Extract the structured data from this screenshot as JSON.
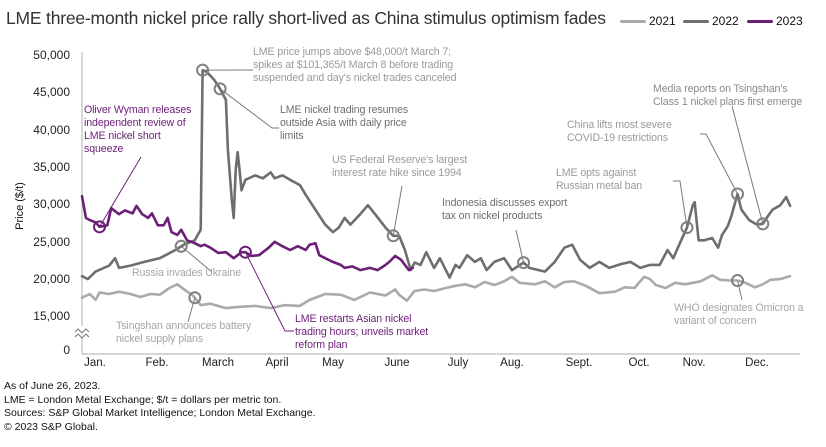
{
  "title": "LME three-month nickel price rally short-lived as China stimulus optimism fades",
  "chart_data": {
    "type": "line",
    "title": "LME three-month nickel price rally short-lived as China stimulus optimism fades",
    "xlabel": "",
    "ylabel": "Price ($/t)",
    "ylim": [
      15000,
      50000
    ],
    "y_ticks": [
      "50,000",
      "45,000",
      "40,000",
      "35,000",
      "30,000",
      "25,000",
      "20,000",
      "15,000",
      "0"
    ],
    "y_axis_break": "between 0 and 15,000",
    "categories": [
      "Jan.",
      "Feb.",
      "March",
      "April",
      "May",
      "June",
      "July",
      "Aug.",
      "Sept.",
      "Oct.",
      "Nov.",
      "Dec."
    ],
    "grid": false,
    "legend_position": "top-right",
    "series": [
      {
        "name": "2021",
        "color": "#aaaaaa",
        "points": [
          [
            "01-01",
            17600
          ],
          [
            "01-05",
            18100
          ],
          [
            "01-08",
            17300
          ],
          [
            "01-10",
            18300
          ],
          [
            "01-15",
            18100
          ],
          [
            "01-20",
            18400
          ],
          [
            "01-26",
            18100
          ],
          [
            "01-31",
            17700
          ],
          [
            "02-05",
            18100
          ],
          [
            "02-10",
            18000
          ],
          [
            "02-15",
            18900
          ],
          [
            "02-19",
            19400
          ],
          [
            "02-23",
            18600
          ],
          [
            "02-27",
            17900
          ],
          [
            "02-28",
            17600
          ],
          [
            "03-03",
            16600
          ],
          [
            "03-08",
            16800
          ],
          [
            "03-16",
            16200
          ],
          [
            "03-24",
            16400
          ],
          [
            "03-31",
            16500
          ],
          [
            "04-08",
            16200
          ],
          [
            "04-15",
            16600
          ],
          [
            "04-23",
            16500
          ],
          [
            "04-28",
            17300
          ],
          [
            "05-06",
            18100
          ],
          [
            "05-14",
            18000
          ],
          [
            "05-21",
            17300
          ],
          [
            "05-29",
            18300
          ],
          [
            "06-06",
            17900
          ],
          [
            "06-11",
            18700
          ],
          [
            "06-13",
            18000
          ],
          [
            "06-17",
            17200
          ],
          [
            "06-21",
            18500
          ],
          [
            "06-26",
            18700
          ],
          [
            "07-01",
            18500
          ],
          [
            "07-07",
            18900
          ],
          [
            "07-12",
            19200
          ],
          [
            "07-17",
            19400
          ],
          [
            "07-22",
            19000
          ],
          [
            "07-27",
            19700
          ],
          [
            "08-01",
            19300
          ],
          [
            "08-06",
            19800
          ],
          [
            "08-10",
            20400
          ],
          [
            "08-14",
            19600
          ],
          [
            "08-22",
            19400
          ],
          [
            "08-27",
            19800
          ],
          [
            "09-01",
            19000
          ],
          [
            "09-06",
            19700
          ],
          [
            "09-11",
            19800
          ],
          [
            "09-17",
            19200
          ],
          [
            "09-24",
            18200
          ],
          [
            "10-02",
            18400
          ],
          [
            "10-07",
            19000
          ],
          [
            "10-12",
            18900
          ],
          [
            "10-17",
            20400
          ],
          [
            "10-20",
            20100
          ],
          [
            "10-23",
            19300
          ],
          [
            "10-28",
            18900
          ],
          [
            "11-02",
            19600
          ],
          [
            "11-07",
            19400
          ],
          [
            "11-15",
            19800
          ],
          [
            "11-21",
            20600
          ],
          [
            "11-25",
            20000
          ],
          [
            "11-30",
            19900
          ],
          [
            "12-04",
            19900
          ],
          [
            "12-08",
            19600
          ],
          [
            "12-13",
            19000
          ],
          [
            "12-17",
            19400
          ],
          [
            "12-21",
            20000
          ],
          [
            "12-26",
            20100
          ],
          [
            "12-31",
            20500
          ]
        ]
      },
      {
        "name": "2022",
        "color": "#6e6e6e",
        "points": [
          [
            "01-01",
            20500
          ],
          [
            "01-04",
            20100
          ],
          [
            "01-08",
            21100
          ],
          [
            "01-15",
            21900
          ],
          [
            "01-18",
            22900
          ],
          [
            "01-20",
            21600
          ],
          [
            "01-26",
            21900
          ],
          [
            "02-02",
            22400
          ],
          [
            "02-10",
            22900
          ],
          [
            "02-18",
            24000
          ],
          [
            "02-23",
            24800
          ],
          [
            "02-28",
            25300
          ],
          [
            "03-03",
            26700
          ],
          [
            "03-04",
            48100
          ],
          [
            "03-06",
            47900
          ],
          [
            "03-10",
            46800
          ],
          [
            "03-13",
            45600
          ],
          [
            "03-16",
            44100
          ],
          [
            "03-17",
            37400
          ],
          [
            "03-19",
            30700
          ],
          [
            "03-20",
            28300
          ],
          [
            "03-21",
            34700
          ],
          [
            "03-22",
            37100
          ],
          [
            "03-23",
            34700
          ],
          [
            "03-24",
            32000
          ],
          [
            "03-26",
            33400
          ],
          [
            "03-31",
            34000
          ],
          [
            "04-04",
            33600
          ],
          [
            "04-08",
            34400
          ],
          [
            "04-10",
            33600
          ],
          [
            "04-14",
            34000
          ],
          [
            "04-18",
            33400
          ],
          [
            "04-23",
            32700
          ],
          [
            "04-26",
            31400
          ],
          [
            "05-01",
            29400
          ],
          [
            "05-06",
            27400
          ],
          [
            "05-10",
            26400
          ],
          [
            "05-13",
            27000
          ],
          [
            "05-16",
            28300
          ],
          [
            "05-19",
            27400
          ],
          [
            "05-24",
            28800
          ],
          [
            "05-28",
            30000
          ],
          [
            "06-01",
            28700
          ],
          [
            "06-06",
            27000
          ],
          [
            "06-10",
            25900
          ],
          [
            "06-13",
            25900
          ],
          [
            "06-16",
            24000
          ],
          [
            "06-19",
            21300
          ],
          [
            "06-21",
            22300
          ],
          [
            "06-24",
            22000
          ],
          [
            "06-27",
            23700
          ],
          [
            "07-01",
            21600
          ],
          [
            "07-04",
            22900
          ],
          [
            "07-09",
            20300
          ],
          [
            "07-12",
            22000
          ],
          [
            "07-14",
            21600
          ],
          [
            "07-18",
            23300
          ],
          [
            "07-22",
            22400
          ],
          [
            "07-25",
            22900
          ],
          [
            "07-28",
            21300
          ],
          [
            "08-01",
            22400
          ],
          [
            "08-06",
            22900
          ],
          [
            "08-10",
            21300
          ],
          [
            "08-16",
            22300
          ],
          [
            "08-19",
            21600
          ],
          [
            "08-27",
            21100
          ],
          [
            "09-01",
            22400
          ],
          [
            "09-06",
            24300
          ],
          [
            "09-10",
            24700
          ],
          [
            "09-14",
            22700
          ],
          [
            "09-19",
            21600
          ],
          [
            "09-24",
            22400
          ],
          [
            "09-29",
            21600
          ],
          [
            "10-05",
            22100
          ],
          [
            "10-10",
            22400
          ],
          [
            "10-15",
            21600
          ],
          [
            "10-20",
            22000
          ],
          [
            "10-25",
            22000
          ],
          [
            "10-29",
            24000
          ],
          [
            "11-01",
            22900
          ],
          [
            "11-04",
            24700
          ],
          [
            "11-08",
            27000
          ],
          [
            "11-11",
            30000
          ],
          [
            "11-12",
            30400
          ],
          [
            "11-14",
            25300
          ],
          [
            "11-17",
            25300
          ],
          [
            "11-21",
            25600
          ],
          [
            "11-24",
            24300
          ],
          [
            "11-26",
            26000
          ],
          [
            "11-29",
            27200
          ],
          [
            "12-01",
            28700
          ],
          [
            "12-04",
            31500
          ],
          [
            "12-06",
            29400
          ],
          [
            "12-10",
            28000
          ],
          [
            "12-14",
            27400
          ],
          [
            "12-17",
            27500
          ],
          [
            "12-19",
            28300
          ],
          [
            "12-22",
            29400
          ],
          [
            "12-26",
            30000
          ],
          [
            "12-29",
            31100
          ],
          [
            "12-31",
            29900
          ]
        ]
      },
      {
        "name": "2023",
        "color": "#6c1f77",
        "points": [
          [
            "01-01",
            31200
          ],
          [
            "01-03",
            28300
          ],
          [
            "01-05",
            28000
          ],
          [
            "01-08",
            27700
          ],
          [
            "01-10",
            27100
          ],
          [
            "01-14",
            27300
          ],
          [
            "01-16",
            29600
          ],
          [
            "01-20",
            28800
          ],
          [
            "01-23",
            29300
          ],
          [
            "01-27",
            28900
          ],
          [
            "01-29",
            29900
          ],
          [
            "02-01",
            28800
          ],
          [
            "02-04",
            28300
          ],
          [
            "02-06",
            28900
          ],
          [
            "02-09",
            27300
          ],
          [
            "02-12",
            27300
          ],
          [
            "02-14",
            28300
          ],
          [
            "02-16",
            26400
          ],
          [
            "02-19",
            26000
          ],
          [
            "02-21",
            26700
          ],
          [
            "02-24",
            25300
          ],
          [
            "02-28",
            24900
          ],
          [
            "03-03",
            24500
          ],
          [
            "03-05",
            24700
          ],
          [
            "03-08",
            24300
          ],
          [
            "03-12",
            23600
          ],
          [
            "03-16",
            23700
          ],
          [
            "03-20",
            22900
          ],
          [
            "03-24",
            23700
          ],
          [
            "03-26",
            23700
          ],
          [
            "03-29",
            23200
          ],
          [
            "04-02",
            23300
          ],
          [
            "04-07",
            24300
          ],
          [
            "04-10",
            25100
          ],
          [
            "04-14",
            24500
          ],
          [
            "04-18",
            24000
          ],
          [
            "04-22",
            24500
          ],
          [
            "04-26",
            24000
          ],
          [
            "04-28",
            24700
          ],
          [
            "05-01",
            24900
          ],
          [
            "05-03",
            23300
          ],
          [
            "05-06",
            22900
          ],
          [
            "05-10",
            22400
          ],
          [
            "05-14",
            22000
          ],
          [
            "05-16",
            21600
          ],
          [
            "05-20",
            21800
          ],
          [
            "05-24",
            21300
          ],
          [
            "05-29",
            21600
          ],
          [
            "06-02",
            21300
          ],
          [
            "06-06",
            22000
          ],
          [
            "06-08",
            22400
          ],
          [
            "06-11",
            23200
          ],
          [
            "06-14",
            22700
          ],
          [
            "06-18",
            21300
          ],
          [
            "06-20",
            21600
          ]
        ]
      }
    ],
    "annotations": [
      {
        "text": [
          "LME price jumps above $48,000/t March 7;",
          "spikes at $101,365/t March 8 before trading",
          "suspended and day's nickel trades canceled"
        ],
        "series": "2022",
        "date": "03-04",
        "value": 48100,
        "color": "#9a9a9a"
      },
      {
        "text": [
          "LME nickel trading resumes",
          "outside Asia with daily price",
          "limits"
        ],
        "series": "2022",
        "date": "03-13",
        "value": 45600,
        "color": "#6e6e6e"
      },
      {
        "text": [
          "US Federal Reserve's largest",
          "interest rate hike since 1994"
        ],
        "series": "2022",
        "date": "06-10",
        "value": 25900,
        "color": "#9a9a9a"
      },
      {
        "text": [
          "Indonesia discusses export",
          "tax on nickel products"
        ],
        "series": "2022",
        "date": "08-16",
        "value": 22300,
        "color": "#6e6e6e"
      },
      {
        "text": [
          "LME opts against",
          "Russian metal ban"
        ],
        "series": "2022",
        "date": "11-08",
        "value": 27000,
        "color": "#9a9a9a"
      },
      {
        "text": [
          "China lifts most severe",
          "COVID-19 restrictions"
        ],
        "series": "2022",
        "date": "12-04",
        "value": 31500,
        "color": "#9a9a9a"
      },
      {
        "text": [
          "Media reports on Tsingshan's",
          "Class 1 nickel plans first emerge"
        ],
        "series": "2022",
        "date": "12-17",
        "value": 27500,
        "color": "#8a8a8a"
      },
      {
        "text": [
          "WHO designates Omicron a",
          "variant of concern"
        ],
        "series": "2021",
        "date": "12-04",
        "value": 19900,
        "color": "#a5a5a5"
      },
      {
        "text": [
          "Russia invades Ukraine"
        ],
        "series": "2022",
        "date": "02-21",
        "value": 24500,
        "color": "#a5a5a5"
      },
      {
        "text": [
          "Tsingshan announces battery",
          "nickel supply plans"
        ],
        "series": "2021",
        "date": "02-28",
        "value": 17600,
        "color": "#a5a5a5"
      },
      {
        "text": [
          "Oliver Wyman releases",
          "independent review of",
          "LME nickel short",
          "squeeze"
        ],
        "series": "2023",
        "date": "01-10",
        "value": 27100,
        "color": "#6c1f77"
      },
      {
        "text": [
          "LME restarts Asian nickel",
          "trading hours; unveils market",
          "reform plan"
        ],
        "series": "2023",
        "date": "03-26",
        "value": 23700,
        "color": "#6c1f77"
      }
    ]
  },
  "notes": [
    "As of June 26, 2023.",
    "LME = London Metal Exchange; $/t = dollars per metric ton.",
    "Sources: S&P Global Market Intelligence; London Metal Exchange.",
    "© 2023 S&P Global."
  ]
}
